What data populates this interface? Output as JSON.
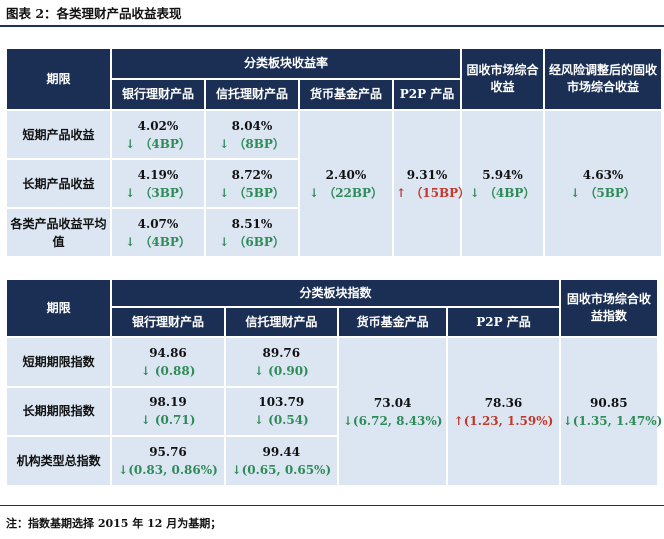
{
  "caption": "图表 2：各类理财产品收益表现",
  "table1": {
    "period_header": "期限",
    "group_header": "分类板块收益率",
    "columns": [
      "银行理财产品",
      "信托理财产品",
      "货币基金产品",
      "P2P 产品"
    ],
    "composite_header": "固收市场综合收益",
    "risk_adj_header": "经风险调整后的固收市场综合收益",
    "rows": [
      {
        "label": "短期产品收益",
        "bank": "4.02%",
        "bank_chg": "（4BP）",
        "trust": "8.04%",
        "trust_chg": "（8BP）"
      },
      {
        "label": "长期产品收益",
        "bank": "4.19%",
        "bank_chg": "（3BP）",
        "trust": "8.72%",
        "trust_chg": "（5BP）"
      },
      {
        "label": "各类产品收益平均值",
        "bank": "4.07%",
        "bank_chg": "（4BP）",
        "trust": "8.51%",
        "trust_chg": "（6BP）"
      }
    ],
    "money_fund": "2.40%",
    "money_fund_chg": "（22BP）",
    "p2p": "9.31%",
    "p2p_chg": "（15BP）",
    "composite": "5.94%",
    "composite_chg": "（4BP）",
    "risk_adj": "4.63%",
    "risk_adj_chg": "（5BP）"
  },
  "table2": {
    "period_header": "期限",
    "group_header": "分类板块指数",
    "columns": [
      "银行理财产品",
      "信托理财产品",
      "货币基金产品",
      "P2P 产品"
    ],
    "index_header": "固收市场综合收益指数",
    "rows": [
      {
        "label": "短期期限指数",
        "bank": "94.86",
        "bank_chg": "(0.88)",
        "trust": "89.76",
        "trust_chg": "(0.90)"
      },
      {
        "label": "长期期限指数",
        "bank": "98.19",
        "bank_chg": "(0.71)",
        "trust": "103.79",
        "trust_chg": "(0.54)"
      },
      {
        "label": "机构类型总指数",
        "bank": "95.76",
        "bank_chg": "(0.83, 0.86%)",
        "trust": "99.44",
        "trust_chg": "(0.65, 0.65%)"
      }
    ],
    "money_fund": "73.04",
    "money_fund_chg": "(6.72, 8.43%)",
    "p2p": "78.36",
    "p2p_chg": "(1.23, 1.59%)",
    "index": "90.85",
    "index_chg": "(1.35, 1.47%)"
  },
  "arrows": {
    "down": "↓",
    "up": "↑"
  },
  "colors": {
    "header_bg": "#1b2f55",
    "cell_bg": "#dce6f2",
    "down": "#2e8b57",
    "up": "#c0392b"
  },
  "note": "注：指数基期选择 2015 年 12 月为基期；"
}
